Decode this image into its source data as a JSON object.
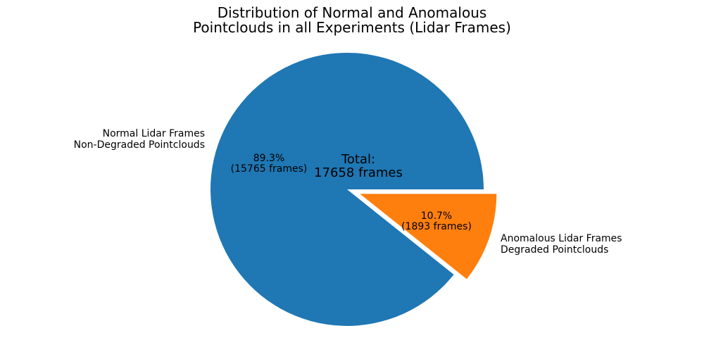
{
  "chart_data": {
    "type": "pie",
    "title": "Distribution of Normal and Anomalous\nPointclouds in all Experiments (Lidar Frames)",
    "total_frames": 17658,
    "center_text": "Total:\n17658 frames",
    "startangle": 0,
    "counterclock": true,
    "legend": "none",
    "slices": [
      {
        "id": "normal",
        "label": "Normal Lidar Frames\nNon-Degraded Pointclouds",
        "value": 15765,
        "pct": 89.3,
        "pct_label": "89.3%\n(15765 frames)",
        "color": "#1f77b4",
        "explode": 0
      },
      {
        "id": "anomalous",
        "label": "Anomalous Lidar Frames\nDegraded Pointclouds",
        "value": 1893,
        "pct": 10.7,
        "pct_label": "10.7%\n(1893 frames)",
        "color": "#ff7f0e",
        "explode": 0.1
      }
    ]
  }
}
